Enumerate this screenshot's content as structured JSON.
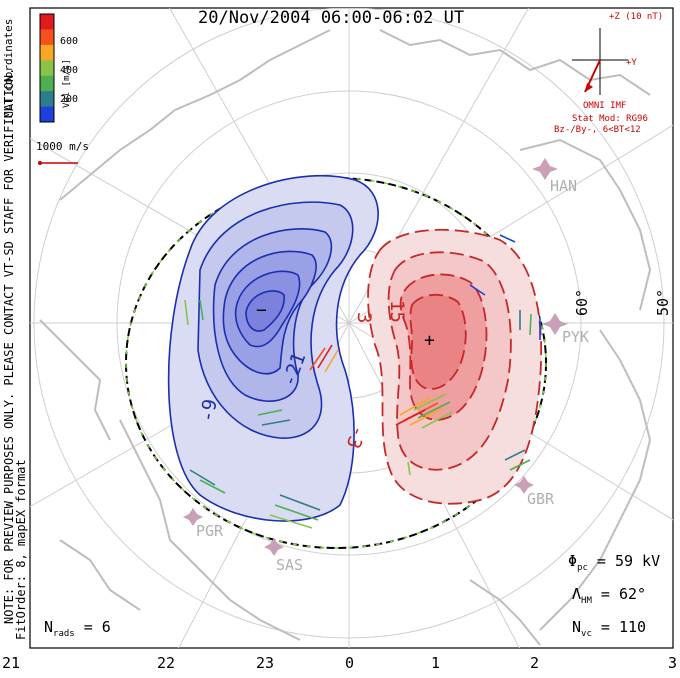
{
  "title": "20/Nov/2004 06:00-06:02 UT",
  "coords_label": "MLT coordinates",
  "colorbar": {
    "label": "Vel [m/s]",
    "ticks": [
      "600",
      "400",
      "200"
    ],
    "colors": [
      "#e11b1b",
      "#f4511e",
      "#f9a825",
      "#8bc34a",
      "#4caf50",
      "#2e7d8c",
      "#1e3fd9"
    ]
  },
  "velocity_scale": "1000 m/s",
  "imf": {
    "z_label": "+Z (10 nT)",
    "y_label": "+Y",
    "source": "OMNI IMF",
    "model": "Stat Mod: RG96",
    "condition": "Bz-/By-, 6<BT<12"
  },
  "notice": "NOTE: FOR PREVIEW PURPOSES ONLY. PLEASE CONTACT VT-SD STAFF FOR VERIFICATION.",
  "fit_info": "FitOrder: 8, mapEX format",
  "latitude_labels": [
    "60°",
    "50°"
  ],
  "contour_labels": [
    "-21",
    "-9",
    "3",
    "15",
    "-3"
  ],
  "extrema_symbols": {
    "min": "−",
    "max": "+"
  },
  "stations": [
    "HAN",
    "PYK",
    "GBR",
    "PGR",
    "SAS"
  ],
  "stats": {
    "phi_symbol": "Φ",
    "phi_sub": "pc",
    "phi_value": "= 59 kV",
    "lambda_symbol": "Λ",
    "lambda_sub": "HM",
    "lambda_value": "= 62°",
    "nvc_symbol": "N",
    "nvc_sub": "vc",
    "nvc_value": "= 110",
    "nrads_symbol": "N",
    "nrads_sub": "rads",
    "nrads_value": "= 6"
  },
  "mlt_axis": [
    "21",
    "22",
    "23",
    "0",
    "1",
    "2",
    "3"
  ]
}
